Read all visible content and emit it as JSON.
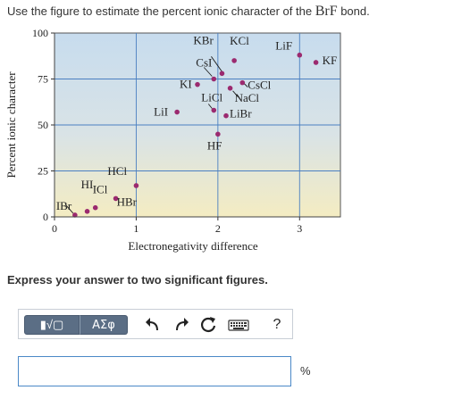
{
  "question": {
    "prefix": "Use the figure to estimate the percent ionic character of the ",
    "formula": "BrF",
    "suffix": " bond."
  },
  "instruction": "Express your answer to two significant figures.",
  "toolbar": {
    "template_label": "▮√▢",
    "greek_label": "ΑΣφ",
    "help_label": "?"
  },
  "answer": {
    "value": "",
    "unit": "%"
  },
  "chart_data": {
    "type": "scatter",
    "xlabel": "Electronegativity difference",
    "ylabel": "Percent ionic character",
    "xlim": [
      0,
      3.5
    ],
    "ylim": [
      0,
      100
    ],
    "xticks": [
      0,
      1,
      2,
      3
    ],
    "yticks": [
      0,
      25,
      50,
      75,
      100
    ],
    "grid": true,
    "point_color": "#9b2a6f",
    "background": "#cfe0ef",
    "points": [
      {
        "label": "IBr",
        "x": 0.25,
        "y": 1
      },
      {
        "label": "HI",
        "x": 0.4,
        "y": 3
      },
      {
        "label": "ICl",
        "x": 0.5,
        "y": 5
      },
      {
        "label": "HBr",
        "x": 0.75,
        "y": 10
      },
      {
        "label": "HCl",
        "x": 1.0,
        "y": 17
      },
      {
        "label": "LiI",
        "x": 1.5,
        "y": 57
      },
      {
        "label": "KI",
        "x": 1.75,
        "y": 72
      },
      {
        "label": "CsI",
        "x": 1.95,
        "y": 75
      },
      {
        "label": "LiCl",
        "x": 1.95,
        "y": 58
      },
      {
        "label": "HF",
        "x": 2.0,
        "y": 45
      },
      {
        "label": "KBr",
        "x": 2.05,
        "y": 78
      },
      {
        "label": "LiBr",
        "x": 2.1,
        "y": 55
      },
      {
        "label": "NaCl",
        "x": 2.15,
        "y": 70
      },
      {
        "label": "KCl",
        "x": 2.2,
        "y": 85
      },
      {
        "label": "CsCl",
        "x": 2.3,
        "y": 73
      },
      {
        "label": "LiF",
        "x": 3.0,
        "y": 88
      },
      {
        "label": "KF",
        "x": 3.2,
        "y": 84
      }
    ]
  }
}
